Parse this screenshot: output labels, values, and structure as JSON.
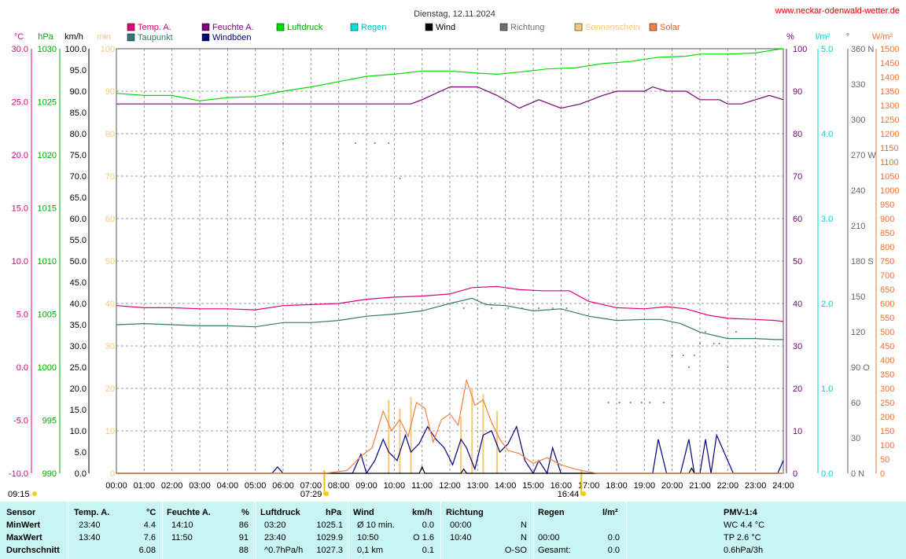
{
  "title": "Dienstag, 12.11.2024",
  "website": "www.neckar-odenwald-wetter.de",
  "legend": [
    {
      "label": "Temp. A.",
      "color": "#e0007a"
    },
    {
      "label": "Taupunkt",
      "color": "#2f7a78"
    },
    {
      "label": "Feuchte A.",
      "color": "#7a007a"
    },
    {
      "label": "Windböen",
      "color": "#00007a"
    },
    {
      "label": "Luftdruck",
      "color": "#00dd00"
    },
    {
      "label": "Regen",
      "color": "#00e0e0"
    },
    {
      "label": "Wind",
      "color": "#000000"
    },
    {
      "label": "Richtung",
      "color": "#707070"
    },
    {
      "label": "Sonnenschein",
      "color": "#f7c878"
    },
    {
      "label": "Solar",
      "color": "#f08040"
    }
  ],
  "axis_units": {
    "temp": "°C",
    "pressure": "hPa",
    "wind": "km/h",
    "sun": "min",
    "humidity": "%",
    "rain": "l/m²",
    "direction": "°",
    "solar": "W/m²"
  },
  "sunrise": "07:29",
  "sunset": "16:44",
  "sun_start": "09:15",
  "chart_data": {
    "type": "line",
    "x_range_hours": [
      0,
      24
    ],
    "x_ticks": [
      "00:00",
      "01:00",
      "02:00",
      "03:00",
      "04:00",
      "05:00",
      "06:00",
      "07:00",
      "08:00",
      "09:00",
      "10:00",
      "11:00",
      "12:00",
      "13:00",
      "14:00",
      "15:00",
      "16:00",
      "17:00",
      "18:00",
      "19:00",
      "20:00",
      "21:00",
      "22:00",
      "23:00",
      "24:00"
    ],
    "axes": {
      "temp": {
        "min": -10,
        "max": 30,
        "ticks": [
          "30.0",
          "25.0",
          "20.0",
          "15.0",
          "10.0",
          "5.0",
          "0.0",
          "-5.0",
          "-10.0"
        ]
      },
      "pressure": {
        "min": 990,
        "max": 1030,
        "ticks": [
          "1030",
          "1025",
          "1020",
          "1015",
          "1010",
          "1005",
          "1000",
          "995",
          "990"
        ]
      },
      "wind": {
        "min": 0,
        "max": 100,
        "ticks": [
          "100.0",
          "95.0",
          "90.0",
          "85.0",
          "80.0",
          "75.0",
          "70.0",
          "65.0",
          "60.0",
          "55.0",
          "50.0",
          "45.0",
          "40.0",
          "35.0",
          "30.0",
          "25.0",
          "20.0",
          "15.0",
          "10.0",
          "5.0",
          "0.0"
        ]
      },
      "sun": {
        "ticks": [
          "100",
          "90",
          "80",
          "70",
          "60",
          "50",
          "40",
          "30",
          "20",
          "10",
          "0"
        ]
      },
      "humidity": {
        "min": 0,
        "max": 100,
        "ticks": [
          "100",
          "90",
          "80",
          "70",
          "60",
          "50",
          "40",
          "30",
          "20",
          "10",
          "0"
        ]
      },
      "rain": {
        "min": 0,
        "max": 5,
        "ticks": [
          "5.0",
          "4.0",
          "3.0",
          "2.0",
          "1.0",
          "0.0"
        ]
      },
      "direction": {
        "min": 0,
        "max": 360,
        "ticks": [
          "360 N",
          "330",
          "300",
          "270 W",
          "240",
          "210",
          "180 S",
          "150",
          "120",
          "90 O",
          "60",
          "30",
          "0 N"
        ]
      },
      "solar": {
        "min": 0,
        "max": 1500,
        "ticks": [
          "1500",
          "1450",
          "1400",
          "1350",
          "1300",
          "1250",
          "1200",
          "1150",
          "1100",
          "1050",
          "1000",
          "950",
          "900",
          "850",
          "800",
          "750",
          "700",
          "650",
          "600",
          "550",
          "500",
          "450",
          "400",
          "350",
          "300",
          "250",
          "200",
          "150",
          "100",
          "50",
          "0"
        ]
      }
    },
    "series": [
      {
        "name": "Temp. A.",
        "axis": "temp",
        "color": "#e0007a",
        "points": [
          [
            0,
            5.8
          ],
          [
            1,
            5.6
          ],
          [
            2,
            5.6
          ],
          [
            3,
            5.5
          ],
          [
            4,
            5.5
          ],
          [
            5,
            5.4
          ],
          [
            6,
            5.8
          ],
          [
            7,
            5.9
          ],
          [
            8,
            6.0
          ],
          [
            9,
            6.4
          ],
          [
            10,
            6.6
          ],
          [
            11,
            6.7
          ],
          [
            12,
            6.9
          ],
          [
            12.8,
            7.5
          ],
          [
            13.7,
            7.6
          ],
          [
            14.5,
            7.3
          ],
          [
            15.3,
            7.2
          ],
          [
            16.3,
            7.2
          ],
          [
            17,
            6.2
          ],
          [
            18,
            5.6
          ],
          [
            19,
            5.5
          ],
          [
            19.8,
            5.7
          ],
          [
            20.5,
            5.5
          ],
          [
            21.3,
            4.9
          ],
          [
            22,
            4.6
          ],
          [
            23,
            4.5
          ],
          [
            23.7,
            4.4
          ],
          [
            24,
            4.3
          ]
        ]
      },
      {
        "name": "Taupunkt",
        "axis": "temp",
        "color": "#2f7a78",
        "points": [
          [
            0,
            4.0
          ],
          [
            1,
            4.1
          ],
          [
            2,
            4.0
          ],
          [
            3,
            3.9
          ],
          [
            4,
            3.9
          ],
          [
            5,
            3.8
          ],
          [
            6,
            4.2
          ],
          [
            7,
            4.2
          ],
          [
            8,
            4.4
          ],
          [
            9,
            4.8
          ],
          [
            10,
            5.0
          ],
          [
            11,
            5.3
          ],
          [
            12,
            6.0
          ],
          [
            12.8,
            6.5
          ],
          [
            13.3,
            5.9
          ],
          [
            14,
            5.8
          ],
          [
            15,
            5.3
          ],
          [
            16,
            5.5
          ],
          [
            17,
            4.8
          ],
          [
            18,
            4.4
          ],
          [
            19,
            4.5
          ],
          [
            19.6,
            4.5
          ],
          [
            20.3,
            4.1
          ],
          [
            21,
            3.3
          ],
          [
            22,
            2.7
          ],
          [
            23,
            2.7
          ],
          [
            23.7,
            2.6
          ],
          [
            24,
            2.6
          ]
        ]
      },
      {
        "name": "Feuchte A.",
        "axis": "humidity",
        "color": "#7a007a",
        "points": [
          [
            0,
            87
          ],
          [
            10.6,
            87
          ],
          [
            11,
            88
          ],
          [
            12,
            91
          ],
          [
            13,
            91
          ],
          [
            13.7,
            89
          ],
          [
            14.5,
            86
          ],
          [
            15.2,
            88
          ],
          [
            16,
            86
          ],
          [
            16.7,
            87
          ],
          [
            17.5,
            89
          ],
          [
            18,
            90
          ],
          [
            19,
            90
          ],
          [
            19.3,
            91
          ],
          [
            19.8,
            90
          ],
          [
            20.5,
            90
          ],
          [
            21,
            88
          ],
          [
            21.7,
            88
          ],
          [
            22,
            87
          ],
          [
            22.5,
            87
          ],
          [
            23,
            88
          ],
          [
            23.5,
            89
          ],
          [
            24,
            88
          ]
        ]
      },
      {
        "name": "Luftdruck",
        "axis": "pressure",
        "color": "#00dd00",
        "points": [
          [
            0,
            1025.8
          ],
          [
            1,
            1025.6
          ],
          [
            2,
            1025.6
          ],
          [
            3,
            1025.1
          ],
          [
            4,
            1025.4
          ],
          [
            5,
            1025.5
          ],
          [
            6,
            1026.0
          ],
          [
            7,
            1026.4
          ],
          [
            8,
            1026.9
          ],
          [
            9,
            1027.4
          ],
          [
            10,
            1027.6
          ],
          [
            11,
            1027.9
          ],
          [
            12,
            1027.9
          ],
          [
            13,
            1027.7
          ],
          [
            13.7,
            1027.6
          ],
          [
            14.5,
            1027.8
          ],
          [
            15.5,
            1028.1
          ],
          [
            16.5,
            1028.2
          ],
          [
            17.5,
            1028.6
          ],
          [
            18.5,
            1028.8
          ],
          [
            19.5,
            1029.2
          ],
          [
            20.5,
            1029.3
          ],
          [
            21,
            1029.5
          ],
          [
            22,
            1029.5
          ],
          [
            23,
            1029.6
          ],
          [
            23.7,
            1029.9
          ],
          [
            24,
            1030.0
          ]
        ]
      },
      {
        "name": "Windböen",
        "axis": "wind",
        "color": "#00007a",
        "points": [
          [
            0,
            0
          ],
          [
            5.6,
            0
          ],
          [
            5.8,
            1.5
          ],
          [
            6,
            0
          ],
          [
            8.5,
            0
          ],
          [
            8.8,
            4.5
          ],
          [
            9,
            0
          ],
          [
            9.3,
            3
          ],
          [
            9.6,
            8
          ],
          [
            9.8,
            5
          ],
          [
            10.1,
            3
          ],
          [
            10.4,
            9
          ],
          [
            10.6,
            5
          ],
          [
            10.9,
            7
          ],
          [
            11.2,
            11
          ],
          [
            11.5,
            8
          ],
          [
            11.8,
            6
          ],
          [
            12.1,
            2
          ],
          [
            12.4,
            8
          ],
          [
            12.6,
            6
          ],
          [
            12.9,
            1
          ],
          [
            13.2,
            9
          ],
          [
            13.5,
            10
          ],
          [
            13.8,
            5
          ],
          [
            14.1,
            7
          ],
          [
            14.4,
            11
          ],
          [
            14.7,
            3
          ],
          [
            15,
            0
          ],
          [
            15.2,
            3
          ],
          [
            15.5,
            0
          ],
          [
            15.7,
            6
          ],
          [
            16,
            0
          ],
          [
            19.3,
            0
          ],
          [
            19.5,
            8
          ],
          [
            19.8,
            0
          ],
          [
            20.3,
            0
          ],
          [
            20.6,
            8
          ],
          [
            20.8,
            0
          ],
          [
            21,
            0
          ],
          [
            21.2,
            8
          ],
          [
            21.4,
            0
          ],
          [
            21.6,
            9
          ],
          [
            21.8,
            6
          ],
          [
            22,
            3
          ],
          [
            22.2,
            0
          ],
          [
            23.8,
            0
          ],
          [
            24,
            3
          ]
        ]
      },
      {
        "name": "Wind",
        "axis": "wind",
        "color": "#000000",
        "points": [
          [
            0,
            0
          ],
          [
            10.9,
            0
          ],
          [
            11,
            1.5
          ],
          [
            11.1,
            0
          ],
          [
            12.4,
            0
          ],
          [
            12.5,
            1
          ],
          [
            12.6,
            0
          ],
          [
            20.6,
            0
          ],
          [
            20.7,
            1.2
          ],
          [
            20.8,
            0
          ],
          [
            24,
            0
          ]
        ]
      },
      {
        "name": "Solar",
        "axis": "solar",
        "color": "#f08040",
        "points": [
          [
            0,
            0
          ],
          [
            7.5,
            0
          ],
          [
            8.3,
            10
          ],
          [
            8.8,
            60
          ],
          [
            9.2,
            90
          ],
          [
            9.6,
            220
          ],
          [
            9.9,
            150
          ],
          [
            10.2,
            190
          ],
          [
            10.5,
            130
          ],
          [
            10.8,
            250
          ],
          [
            11.1,
            230
          ],
          [
            11.4,
            110
          ],
          [
            11.7,
            190
          ],
          [
            12.0,
            210
          ],
          [
            12.3,
            170
          ],
          [
            12.6,
            330
          ],
          [
            12.9,
            240
          ],
          [
            13.2,
            260
          ],
          [
            13.5,
            180
          ],
          [
            13.8,
            120
          ],
          [
            14.1,
            80
          ],
          [
            14.5,
            70
          ],
          [
            15.0,
            35
          ],
          [
            15.5,
            55
          ],
          [
            16.0,
            30
          ],
          [
            16.5,
            15
          ],
          [
            17.0,
            5
          ],
          [
            17.3,
            0
          ],
          [
            24,
            0
          ]
        ]
      }
    ],
    "sunshine": [
      [
        9.8,
        260
      ],
      [
        10.2,
        230
      ],
      [
        10.6,
        270
      ],
      [
        12.4,
        200
      ],
      [
        12.8,
        300
      ],
      [
        13.2,
        280
      ],
      [
        13.7,
        220
      ]
    ],
    "direction_points": [
      [
        6,
        280
      ],
      [
        8.6,
        280
      ],
      [
        9.3,
        280
      ],
      [
        9.8,
        280
      ],
      [
        10.2,
        250
      ],
      [
        12.5,
        140
      ],
      [
        13.0,
        140
      ],
      [
        13.5,
        140
      ],
      [
        14.1,
        140
      ],
      [
        14.6,
        140
      ],
      [
        15.2,
        140
      ],
      [
        15.7,
        140
      ],
      [
        16.2,
        140
      ],
      [
        17.7,
        60
      ],
      [
        18.1,
        60
      ],
      [
        18.5,
        60
      ],
      [
        18.9,
        60
      ],
      [
        19.2,
        60
      ],
      [
        19.7,
        60
      ],
      [
        20.0,
        100
      ],
      [
        20.4,
        100
      ],
      [
        20.6,
        90
      ],
      [
        20.8,
        100
      ],
      [
        21.0,
        110
      ],
      [
        21.2,
        120
      ],
      [
        21.5,
        110
      ],
      [
        21.7,
        110
      ],
      [
        22.0,
        90
      ],
      [
        22.3,
        120
      ]
    ]
  },
  "table": {
    "headers": {
      "sensor": "Sensor",
      "temp": "Temp. A.",
      "temp_unit": "°C",
      "hum": "Feuchte A.",
      "hum_unit": "%",
      "pres": "Luftdruck",
      "pres_unit": "hPa",
      "wind": "Wind",
      "wind_unit": "km/h",
      "dir": "Richtung",
      "rain": "Regen",
      "rain_unit": "l/m²",
      "pmv": "PMV-1:4"
    },
    "rows": [
      {
        "label": "MinWert",
        "temp_time": "23:40",
        "temp_val": "4.4",
        "hum_time": "14:10",
        "hum_val": "86",
        "pres_time": "03:20",
        "pres_val": "1025.1",
        "wind_time": "Ø 10 min.",
        "wind_val": "0.0",
        "dir_time": "00:00",
        "dir_val": "N",
        "rain_time": "",
        "rain_val": "",
        "pmv": "WC 4.4 °C"
      },
      {
        "label": "MaxWert",
        "temp_time": "13:40",
        "temp_val": "7.6",
        "hum_time": "11:50",
        "hum_val": "91",
        "pres_time": "23:40",
        "pres_val": "1029.9",
        "wind_time": "10:50",
        "wind_val": "O 1.6",
        "dir_time": "10:40",
        "dir_val": "N",
        "rain_time": "00:00",
        "rain_val": "0.0",
        "pmv": "TP 2.6 °C"
      },
      {
        "label": "Durchschnitt",
        "temp_time": "",
        "temp_val": "6.08",
        "hum_time": "",
        "hum_val": "88",
        "pres_time": "^0.7hPa/h",
        "pres_val": "1027.3",
        "wind_time": "0,1 km",
        "wind_val": "0.1",
        "dir_time": "",
        "dir_val": "O-SO",
        "rain_time": "Gesamt:",
        "rain_val": "0.0",
        "pmv": "0.6hPa/3h"
      }
    ]
  }
}
